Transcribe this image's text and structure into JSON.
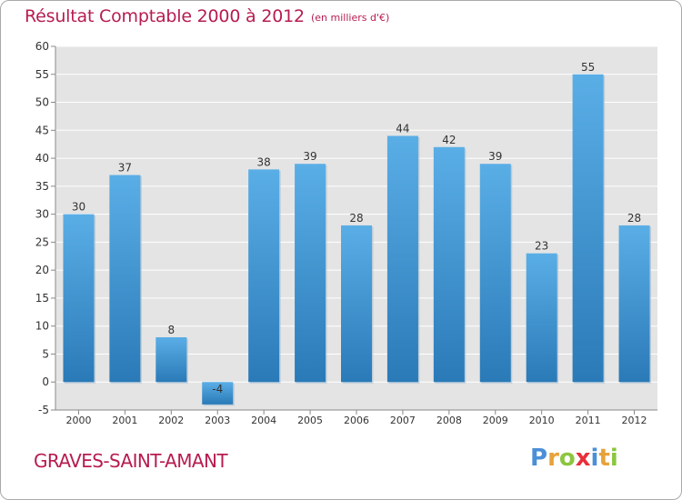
{
  "header": {
    "title": "Résultat Comptable 2000 à 2012",
    "subtitle": "(en milliers d'€)"
  },
  "footer": {
    "commune": "GRAVES-SAINT-AMANT",
    "brand": "Proxiti",
    "brand_letters": [
      {
        "char": "P",
        "color": "#4a8fd8"
      },
      {
        "char": "r",
        "color": "#e8a23a"
      },
      {
        "char": "o",
        "color": "#8cc63f"
      },
      {
        "char": "x",
        "color": "#e8303a"
      },
      {
        "char": "i",
        "color": "#4a8fd8"
      },
      {
        "char": "t",
        "color": "#e8a23a"
      },
      {
        "char": "i",
        "color": "#8cc63f"
      }
    ]
  },
  "colors": {
    "accent": "#b71c4e",
    "bar_top": "#5aaee6",
    "bar_bottom": "#2a7ab8",
    "plot_bg": "#e4e4e4",
    "grid": "#ffffff"
  },
  "chart_data": {
    "type": "bar",
    "title": "Résultat Comptable 2000 à 2012",
    "subtitle": "(en milliers d'€)",
    "xlabel": "",
    "ylabel": "",
    "categories": [
      "2000",
      "2001",
      "2002",
      "2003",
      "2004",
      "2005",
      "2006",
      "2007",
      "2008",
      "2009",
      "2010",
      "2011",
      "2012"
    ],
    "values": [
      30,
      37,
      8,
      -4,
      38,
      39,
      28,
      44,
      42,
      39,
      23,
      55,
      28
    ],
    "labels": [
      "30",
      "37",
      "8",
      "-4",
      "38",
      "39",
      "28",
      "44",
      "42",
      "39",
      "23",
      "55",
      "28"
    ],
    "ylim": [
      -5,
      60
    ],
    "yticks": [
      -5,
      0,
      5,
      10,
      15,
      20,
      25,
      30,
      35,
      40,
      45,
      50,
      55,
      60
    ],
    "grid": true,
    "legend": "none"
  }
}
